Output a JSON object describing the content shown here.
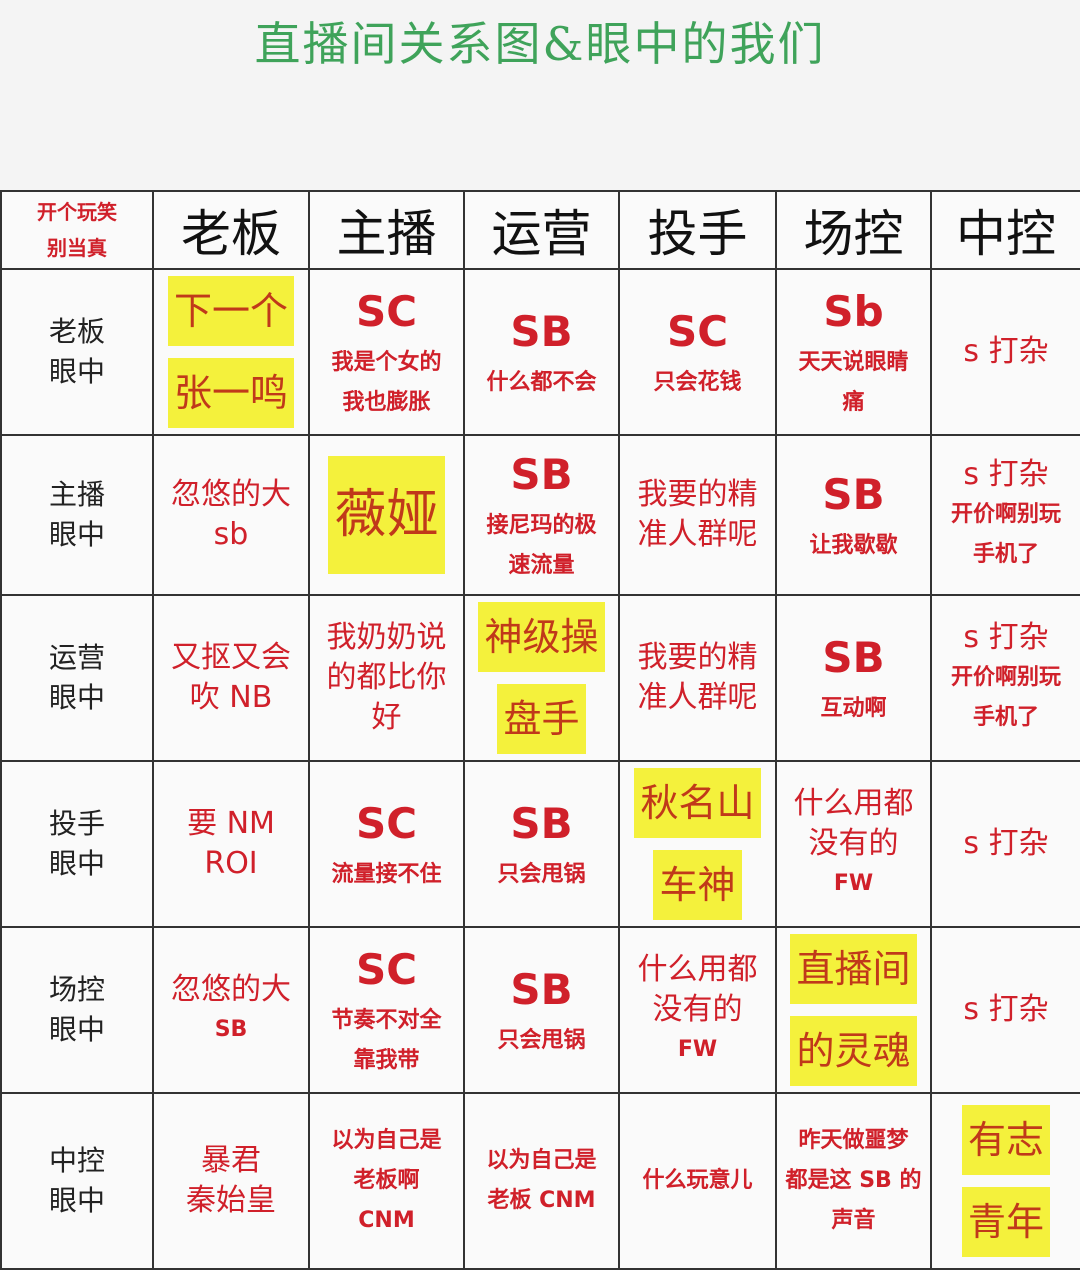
{
  "title": "直播间关系图&眼中的我们",
  "corner": [
    "开个玩笑",
    "别当真"
  ],
  "columns": [
    "老板",
    "主播",
    "运营",
    "投手",
    "场控",
    "中控"
  ],
  "colors": {
    "title": "#3fa35a",
    "text_red": "#d0202a",
    "highlight": "#f4f13c"
  },
  "rows": [
    {
      "head": [
        "老板",
        "眼中"
      ],
      "cells": [
        {
          "lines": [
            "下一个",
            "张一鸣"
          ],
          "highlight": true
        },
        {
          "code": "SC",
          "lines": [
            "我是个女的",
            "我也膨胀"
          ]
        },
        {
          "code": "SB",
          "lines": [
            "什么都不会"
          ]
        },
        {
          "code": "SC",
          "lines": [
            "只会花钱"
          ]
        },
        {
          "code": "Sb",
          "lines": [
            "天天说眼睛",
            "痛"
          ]
        },
        {
          "mid": [
            "s 打杂"
          ],
          "lines": []
        }
      ]
    },
    {
      "head": [
        "主播",
        "眼中"
      ],
      "cells": [
        {
          "mid": [
            "忽悠的大",
            "sb"
          ],
          "lines": []
        },
        {
          "lines": [
            "薇娅"
          ],
          "highlight": true,
          "big": true
        },
        {
          "code": "SB",
          "lines": [
            "接尼玛的极",
            "速流量"
          ]
        },
        {
          "mid": [
            "我要的精",
            "准人群呢"
          ],
          "lines": []
        },
        {
          "code": "SB",
          "lines": [
            "让我歇歇"
          ]
        },
        {
          "mid": [
            "s 打杂"
          ],
          "lines": [
            "开价啊别玩",
            "手机了"
          ]
        }
      ]
    },
    {
      "head": [
        "运营",
        "眼中"
      ],
      "cells": [
        {
          "mid": [
            "又抠又会",
            "吹 NB"
          ],
          "lines": []
        },
        {
          "mid": [
            "我奶奶说",
            "的都比你",
            "好"
          ],
          "lines": []
        },
        {
          "lines": [
            "神级操",
            "盘手"
          ],
          "highlight": true
        },
        {
          "mid": [
            "我要的精",
            "准人群呢"
          ],
          "lines": []
        },
        {
          "code": "SB",
          "lines": [
            "互动啊"
          ]
        },
        {
          "mid": [
            "s 打杂"
          ],
          "lines": [
            "开价啊别玩",
            "手机了"
          ]
        }
      ]
    },
    {
      "head": [
        "投手",
        "眼中"
      ],
      "cells": [
        {
          "mid": [
            "要 NM",
            "ROI"
          ],
          "lines": []
        },
        {
          "code": "SC",
          "lines": [
            "流量接不住"
          ]
        },
        {
          "code": "SB",
          "lines": [
            "只会甩锅"
          ]
        },
        {
          "lines": [
            "秋名山",
            "车神"
          ],
          "highlight": true
        },
        {
          "mid": [
            "什么用都",
            "没有的"
          ],
          "lines": [
            "FW"
          ]
        },
        {
          "mid": [
            "s 打杂"
          ],
          "lines": []
        }
      ]
    },
    {
      "head": [
        "场控",
        "眼中"
      ],
      "cells": [
        {
          "mid": [
            "忽悠的大"
          ],
          "lines": [
            "SB"
          ]
        },
        {
          "code": "SC",
          "lines": [
            "节奏不对全",
            "靠我带"
          ]
        },
        {
          "code": "SB",
          "lines": [
            "只会甩锅"
          ]
        },
        {
          "mid": [
            "什么用都",
            "没有的"
          ],
          "lines": [
            "FW"
          ]
        },
        {
          "lines": [
            "直播间",
            "的灵魂"
          ],
          "highlight": true
        },
        {
          "mid": [
            "s 打杂"
          ],
          "lines": []
        }
      ]
    },
    {
      "head": [
        "中控",
        "眼中"
      ],
      "cells": [
        {
          "mid": [
            "暴君",
            "秦始皇"
          ],
          "lines": []
        },
        {
          "lines": [
            "以为自己是",
            "老板啊",
            "CNM"
          ]
        },
        {
          "lines": [
            "以为自己是",
            "老板 CNM"
          ]
        },
        {
          "lines": [
            "什么玩意儿"
          ]
        },
        {
          "lines": [
            "昨天做噩梦",
            "都是这 SB 的",
            "声音"
          ]
        },
        {
          "lines": [
            "有志",
            "青年"
          ],
          "highlight": true
        }
      ]
    }
  ]
}
